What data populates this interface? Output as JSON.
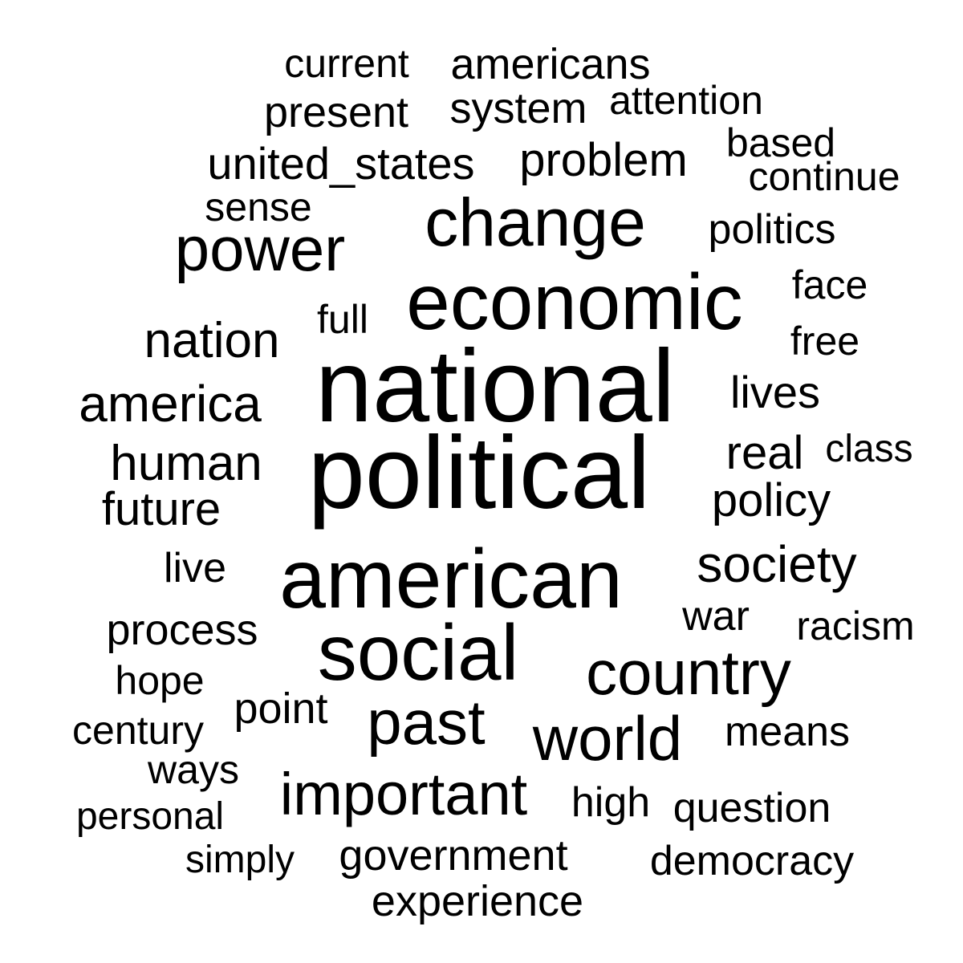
{
  "words": [
    {
      "text": "political"
    },
    {
      "text": "national"
    },
    {
      "text": "american"
    },
    {
      "text": "economic"
    },
    {
      "text": "social"
    },
    {
      "text": "change"
    },
    {
      "text": "power"
    },
    {
      "text": "country"
    },
    {
      "text": "past"
    },
    {
      "text": "world"
    },
    {
      "text": "important"
    },
    {
      "text": "america"
    },
    {
      "text": "society"
    },
    {
      "text": "human"
    },
    {
      "text": "nation"
    },
    {
      "text": "policy"
    },
    {
      "text": "problem"
    },
    {
      "text": "united_states"
    },
    {
      "text": "future"
    },
    {
      "text": "real"
    },
    {
      "text": "lives"
    },
    {
      "text": "americans"
    },
    {
      "text": "process"
    },
    {
      "text": "point"
    },
    {
      "text": "government"
    },
    {
      "text": "experience"
    },
    {
      "text": "present"
    },
    {
      "text": "system"
    },
    {
      "text": "politics"
    },
    {
      "text": "democracy"
    },
    {
      "text": "question"
    },
    {
      "text": "means"
    },
    {
      "text": "continue"
    },
    {
      "text": "current"
    },
    {
      "text": "attention"
    },
    {
      "text": "based"
    },
    {
      "text": "sense"
    },
    {
      "text": "face"
    },
    {
      "text": "free"
    },
    {
      "text": "full"
    },
    {
      "text": "live"
    },
    {
      "text": "war"
    },
    {
      "text": "racism"
    },
    {
      "text": "hope"
    },
    {
      "text": "century"
    },
    {
      "text": "ways"
    },
    {
      "text": "high"
    },
    {
      "text": "personal"
    },
    {
      "text": "simply"
    },
    {
      "text": "class"
    }
  ]
}
